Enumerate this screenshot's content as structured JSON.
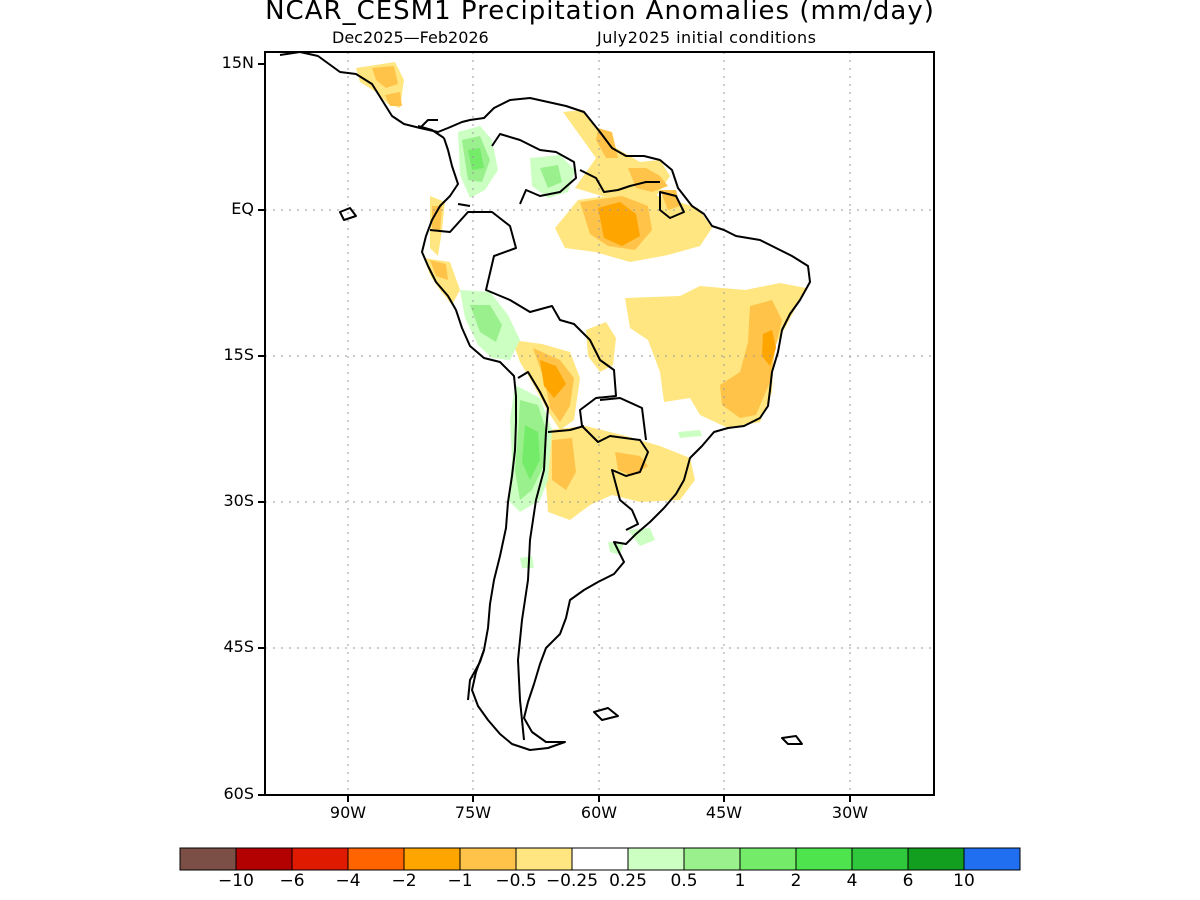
{
  "header": {
    "title": "NCAR_CESM1 Precipitation Anomalies (mm/day)",
    "period": "Dec2025—Feb2026",
    "initial_conditions": "July2025 initial conditions"
  },
  "map": {
    "projection": "cylindrical",
    "lon_range": [
      -100,
      -27
    ],
    "lat_range": [
      -60,
      15
    ],
    "y_ticks": [
      "15N",
      "EQ",
      "15S",
      "30S",
      "45S",
      "60S"
    ],
    "x_ticks": [
      "90W",
      "75W",
      "60W",
      "45W",
      "30W"
    ],
    "grid": "dotted"
  },
  "colorbar": {
    "colors": [
      "#7b4f46",
      "#b30000",
      "#e01a00",
      "#ff6400",
      "#ffa500",
      "#ffc34a",
      "#ffe680",
      "#ffffff",
      "#ccffc2",
      "#99f08c",
      "#75ec69",
      "#4de44d",
      "#2fc83c",
      "#129e1e",
      "#1f6ff0"
    ],
    "labels": [
      "−10",
      "−6",
      "−4",
      "−2",
      "−1",
      "−0.5",
      "−0.25",
      "0.25",
      "0.5",
      "1",
      "2",
      "4",
      "6",
      "10"
    ]
  }
}
